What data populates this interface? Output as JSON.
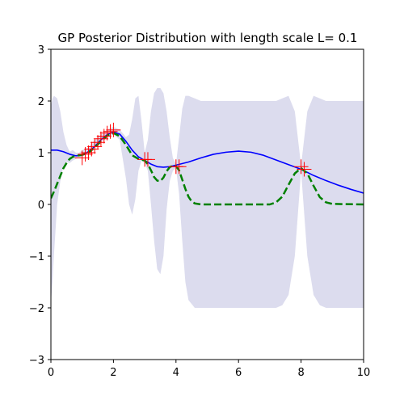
{
  "chart_data": {
    "type": "line",
    "title": "GP Posterior Distribution with length scale L= 0.1",
    "xlabel": "",
    "ylabel": "",
    "xlim": [
      0,
      10
    ],
    "ylim": [
      -3,
      3
    ],
    "x_ticks": [
      0,
      2,
      4,
      6,
      8,
      10
    ],
    "y_ticks": [
      -3,
      -2,
      -1,
      0,
      1,
      2,
      3
    ],
    "x_tick_labels": [
      "0",
      "2",
      "4",
      "6",
      "8",
      "10"
    ],
    "y_tick_labels": [
      "−3",
      "−2",
      "−1",
      "0",
      "1",
      "2",
      "3"
    ],
    "grid": false,
    "legend": "none",
    "colors": {
      "band": "#dcdcee",
      "posterior_mean": "#0000ff",
      "true_function": "#008000",
      "observations": "#ff0000"
    },
    "confidence_band": {
      "x": [
        0,
        0.05,
        0.1,
        0.2,
        0.3,
        0.4,
        0.5,
        0.6,
        0.7,
        0.8,
        0.9,
        1.0,
        1.2,
        1.4,
        1.6,
        1.8,
        2.0,
        2.2,
        2.4,
        2.5,
        2.6,
        2.7,
        2.8,
        2.9,
        3.0,
        3.1,
        3.2,
        3.3,
        3.4,
        3.5,
        3.6,
        3.7,
        3.8,
        3.9,
        4.0,
        4.1,
        4.2,
        4.3,
        4.4,
        4.6,
        4.8,
        5.0,
        5.5,
        6.0,
        6.5,
        7.0,
        7.2,
        7.4,
        7.6,
        7.8,
        8.0,
        8.2,
        8.4,
        8.6,
        8.8,
        9.0,
        9.5,
        10.0
      ],
      "upper": [
        1.9,
        2.05,
        2.1,
        2.05,
        1.8,
        1.4,
        1.15,
        1.02,
        1.05,
        1.0,
        1.0,
        1.05,
        1.1,
        1.25,
        1.35,
        1.45,
        1.5,
        1.45,
        1.3,
        1.35,
        1.65,
        2.05,
        2.1,
        1.6,
        1.0,
        1.25,
        1.8,
        2.15,
        2.25,
        2.25,
        2.15,
        1.8,
        1.3,
        0.9,
        0.78,
        1.3,
        1.85,
        2.1,
        2.1,
        2.05,
        2.0,
        2.0,
        2.0,
        2.0,
        2.0,
        2.0,
        2.0,
        2.05,
        2.1,
        1.8,
        0.75,
        1.8,
        2.1,
        2.05,
        2.0,
        2.0,
        2.0,
        2.0
      ],
      "lower": [
        -1.9,
        -1.5,
        -0.95,
        0.0,
        0.45,
        0.75,
        0.82,
        0.8,
        0.85,
        0.88,
        0.9,
        0.92,
        1.0,
        1.1,
        1.2,
        1.3,
        1.35,
        1.25,
        0.5,
        0.0,
        -0.2,
        0.1,
        0.65,
        0.85,
        0.8,
        0.65,
        0.0,
        -0.7,
        -1.25,
        -1.35,
        -1.0,
        -0.1,
        0.45,
        0.65,
        0.7,
        0.2,
        -0.7,
        -1.5,
        -1.85,
        -2.0,
        -2.0,
        -2.0,
        -2.0,
        -2.0,
        -2.0,
        -2.0,
        -2.0,
        -1.95,
        -1.75,
        -1.0,
        0.65,
        -1.0,
        -1.75,
        -1.95,
        -2.0,
        -2.0,
        -2.0,
        -2.0
      ]
    },
    "series": [
      {
        "role": "posterior_mean",
        "x": [
          0,
          0.2,
          0.4,
          0.6,
          0.8,
          1.0,
          1.2,
          1.4,
          1.6,
          1.8,
          2.0,
          2.2,
          2.4,
          2.6,
          2.8,
          3.0,
          3.2,
          3.4,
          3.6,
          3.8,
          4.0,
          4.4,
          4.8,
          5.2,
          5.6,
          6.0,
          6.4,
          6.8,
          7.2,
          7.6,
          8.0,
          8.4,
          8.8,
          9.2,
          9.6,
          10.0
        ],
        "y": [
          1.05,
          1.05,
          1.02,
          0.97,
          0.94,
          0.95,
          1.02,
          1.12,
          1.25,
          1.35,
          1.4,
          1.36,
          1.22,
          1.05,
          0.92,
          0.85,
          0.78,
          0.73,
          0.72,
          0.73,
          0.76,
          0.82,
          0.9,
          0.97,
          1.01,
          1.03,
          1.01,
          0.95,
          0.86,
          0.77,
          0.68,
          0.56,
          0.46,
          0.37,
          0.29,
          0.22
        ]
      },
      {
        "role": "true_function",
        "x": [
          0,
          0.1,
          0.2,
          0.3,
          0.4,
          0.5,
          0.6,
          0.7,
          0.8,
          1.0,
          1.2,
          1.4,
          1.6,
          1.8,
          2.0,
          2.2,
          2.4,
          2.6,
          2.8,
          3.0,
          3.1,
          3.2,
          3.3,
          3.4,
          3.5,
          3.6,
          3.7,
          3.8,
          3.9,
          4.0,
          4.1,
          4.2,
          4.3,
          4.4,
          4.5,
          4.6,
          4.8,
          5.0,
          6.0,
          7.0,
          7.2,
          7.4,
          7.6,
          7.8,
          8.0,
          8.2,
          8.4,
          8.6,
          8.8,
          9.0,
          10.0
        ],
        "y": [
          0.12,
          0.25,
          0.4,
          0.55,
          0.7,
          0.8,
          0.88,
          0.92,
          0.94,
          0.96,
          1.0,
          1.1,
          1.22,
          1.33,
          1.38,
          1.32,
          1.15,
          0.95,
          0.88,
          0.85,
          0.78,
          0.66,
          0.53,
          0.46,
          0.45,
          0.52,
          0.64,
          0.72,
          0.75,
          0.74,
          0.66,
          0.48,
          0.3,
          0.15,
          0.06,
          0.02,
          0.0,
          0.0,
          0.0,
          0.0,
          0.04,
          0.15,
          0.38,
          0.6,
          0.7,
          0.6,
          0.36,
          0.14,
          0.04,
          0.01,
          0.0
        ]
      }
    ],
    "observations": {
      "x": [
        1.0,
        1.1,
        1.2,
        1.3,
        1.4,
        1.5,
        1.6,
        1.7,
        1.8,
        1.9,
        2.0,
        3.0,
        3.1,
        4.0,
        4.1,
        8.0,
        8.1
      ],
      "y": [
        0.9,
        0.97,
        1.0,
        1.07,
        1.12,
        1.2,
        1.27,
        1.32,
        1.38,
        1.41,
        1.44,
        0.87,
        0.87,
        0.73,
        0.73,
        0.73,
        0.68
      ]
    }
  }
}
